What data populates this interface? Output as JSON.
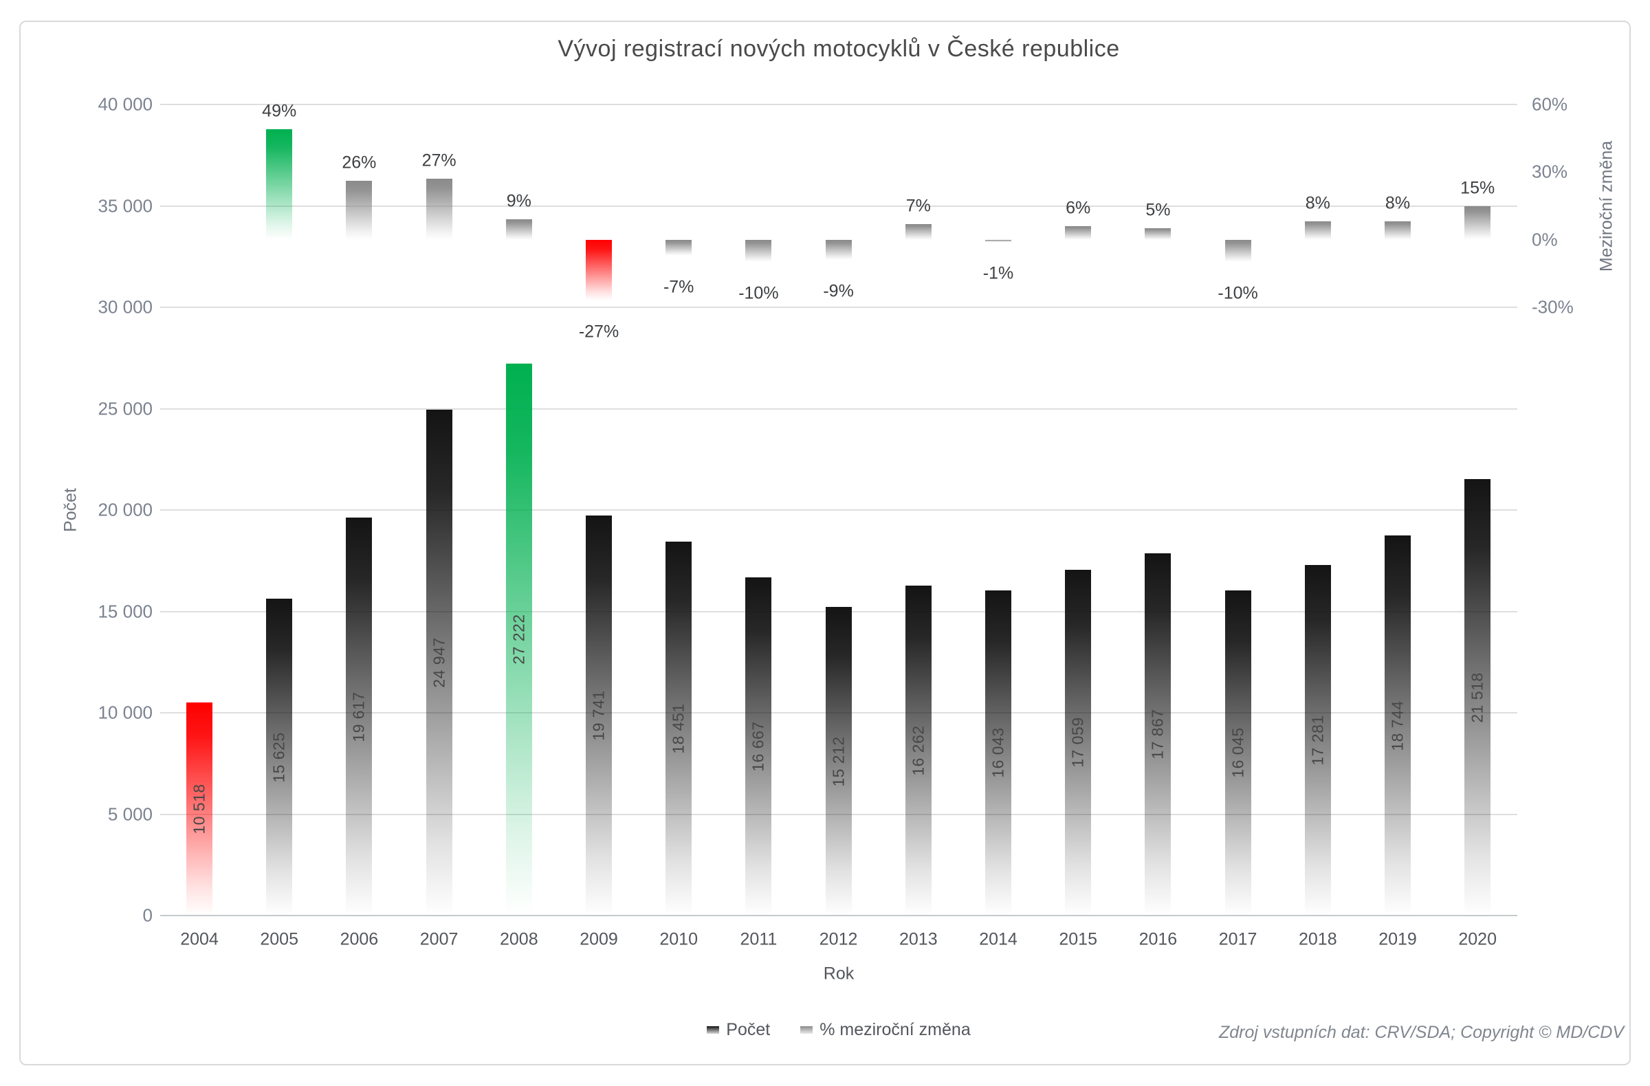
{
  "chart": {
    "title": "Vývoj registrací nových motocyklů v České republice",
    "x_axis_title": "Rok",
    "left_axis_title": "Počet",
    "right_axis_title": "Meziroční změna",
    "left_axis_ticks": [
      {
        "label": "40 000",
        "value": 40000
      },
      {
        "label": "35 000",
        "value": 35000
      },
      {
        "label": "30 000",
        "value": 30000
      },
      {
        "label": "25 000",
        "value": 25000
      },
      {
        "label": "20 000",
        "value": 20000
      },
      {
        "label": "15 000",
        "value": 15000
      },
      {
        "label": "10 000",
        "value": 10000
      },
      {
        "label": "5 000",
        "value": 5000
      },
      {
        "label": "0",
        "value": 0
      }
    ],
    "right_axis_ticks": [
      {
        "label": "60%",
        "pct": 60
      },
      {
        "label": "30%",
        "pct": 30
      },
      {
        "label": "0%",
        "pct": 0
      },
      {
        "label": "-30%",
        "pct": -30
      }
    ],
    "legend": [
      {
        "label": "Počet",
        "swatch_color": "#141414"
      },
      {
        "label": "% meziroční změna",
        "swatch_color": "#8a8a8a"
      }
    ],
    "footer": "Zdroj vstupních dat: CRV/SDA; Copyright © MD/CDV"
  },
  "chart_data": {
    "type": "bar",
    "categories": [
      "2004",
      "2005",
      "2006",
      "2007",
      "2008",
      "2009",
      "2010",
      "2011",
      "2012",
      "2013",
      "2014",
      "2015",
      "2016",
      "2017",
      "2018",
      "2019",
      "2020"
    ],
    "series": [
      {
        "name": "Počet",
        "axis": "left",
        "values": [
          10518,
          15625,
          19617,
          24947,
          27222,
          19741,
          18451,
          16667,
          15212,
          16262,
          16043,
          17059,
          17867,
          16045,
          17281,
          18744,
          21518
        ],
        "labels": [
          "10 518",
          "15 625",
          "19 617",
          "24 947",
          "27 222",
          "19 741",
          "18 451",
          "16 667",
          "15 212",
          "16 262",
          "16 043",
          "17 059",
          "17 867",
          "16 045",
          "17 281",
          "18 744",
          "21 518"
        ],
        "colors": [
          "#fe0000",
          "#141414",
          "#141414",
          "#141414",
          "#00b050",
          "#141414",
          "#141414",
          "#141414",
          "#141414",
          "#141414",
          "#141414",
          "#141414",
          "#141414",
          "#141414",
          "#141414",
          "#141414",
          "#141414"
        ]
      },
      {
        "name": "% meziroční změna",
        "axis": "right",
        "values": [
          null,
          49,
          26,
          27,
          9,
          -27,
          -7,
          -10,
          -9,
          7,
          -1,
          6,
          5,
          -10,
          8,
          8,
          15
        ],
        "labels": [
          null,
          "49%",
          "26%",
          "27%",
          "9%",
          "-27%",
          "-7%",
          "-10%",
          "-9%",
          "7%",
          "-1%",
          "6%",
          "5%",
          "-10%",
          "8%",
          "8%",
          "15%"
        ],
        "colors": [
          null,
          "#00b050",
          "#8a8a8a",
          "#8a8a8a",
          "#8a8a8a",
          "#fe0000",
          "#8a8a8a",
          "#8a8a8a",
          "#8a8a8a",
          "#8a8a8a",
          "#8a8a8a",
          "#8a8a8a",
          "#8a8a8a",
          "#8a8a8a",
          "#8a8a8a",
          "#8a8a8a",
          "#8a8a8a"
        ]
      }
    ],
    "left_ylim": [
      0,
      40000
    ],
    "right_axis": {
      "zero_at_left_value": 33333,
      "left_units_per_percent": 111.11
    },
    "grid": true,
    "legend_position": "bottom"
  }
}
